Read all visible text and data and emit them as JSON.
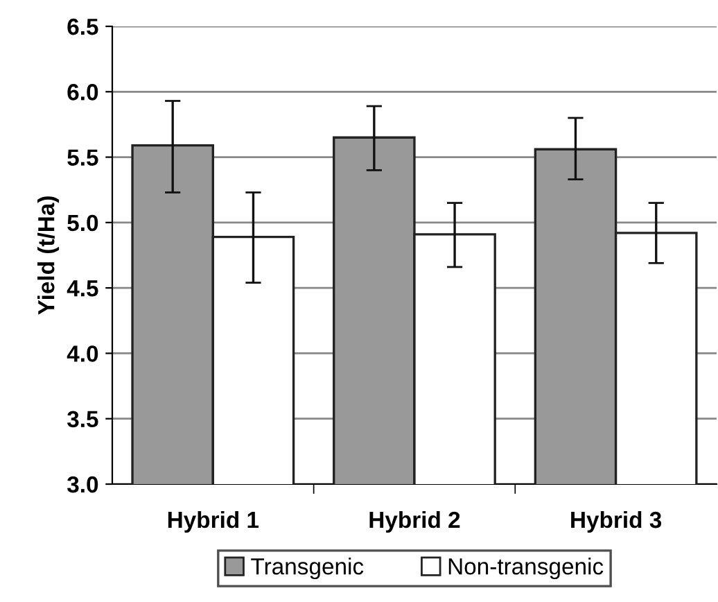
{
  "chart_data": {
    "type": "bar",
    "ylabel": "Yield (t/Ha)",
    "categories": [
      "Hybrid 1",
      "Hybrid 2",
      "Hybrid 3"
    ],
    "series": [
      {
        "name": "Transgenic",
        "color": "#999999",
        "values": [
          5.59,
          5.65,
          5.56
        ],
        "errors": [
          [
            5.23,
            5.93
          ],
          [
            5.4,
            5.89
          ],
          [
            5.33,
            5.8
          ]
        ]
      },
      {
        "name": "Non-transgenic",
        "color": "#ffffff",
        "values": [
          4.89,
          4.91,
          4.92
        ],
        "errors": [
          [
            4.54,
            5.23
          ],
          [
            4.66,
            5.15
          ],
          [
            4.69,
            5.15
          ]
        ]
      }
    ],
    "ylim": [
      3.0,
      6.5
    ],
    "yticks": [
      {
        "value": 3.0,
        "label": "3.0"
      },
      {
        "value": 3.5,
        "label": "3.5"
      },
      {
        "value": 4.0,
        "label": "4.0"
      },
      {
        "value": 4.5,
        "label": "4.5"
      },
      {
        "value": 5.0,
        "label": "5.0"
      },
      {
        "value": 5.5,
        "label": "5.5"
      },
      {
        "value": 6.0,
        "label": "6.0"
      },
      {
        "value": 6.5,
        "label": "6.5"
      }
    ],
    "grid": "y",
    "legend": "bottom"
  }
}
